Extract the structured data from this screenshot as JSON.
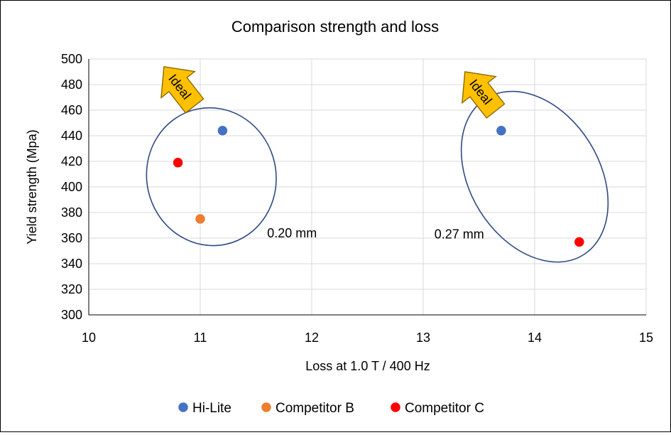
{
  "chart_data": {
    "type": "scatter",
    "title": "Comparison strength and loss",
    "xlabel": "Loss at 1.0 T / 400 Hz",
    "ylabel": "Yield strength (Mpa)",
    "xlim": [
      10,
      15
    ],
    "ylim": [
      300,
      500
    ],
    "x_ticks": [
      10,
      11,
      12,
      13,
      14,
      15
    ],
    "y_ticks": [
      300,
      320,
      340,
      360,
      380,
      400,
      420,
      440,
      460,
      480,
      500
    ],
    "grid": true,
    "legend_position": "bottom",
    "series": [
      {
        "name": "Hi-Lite",
        "color": "#4472C4",
        "points": [
          {
            "x": 11.2,
            "y": 444
          },
          {
            "x": 13.7,
            "y": 444
          }
        ]
      },
      {
        "name": "Competitor B",
        "color": "#ED7D31",
        "points": [
          {
            "x": 11.0,
            "y": 375
          }
        ]
      },
      {
        "name": "Competitor C",
        "color": "#FF0000",
        "points": [
          {
            "x": 10.8,
            "y": 419
          },
          {
            "x": 14.4,
            "y": 357
          }
        ]
      }
    ],
    "annotations": [
      {
        "text": "0.20 mm",
        "x": 11.6,
        "y": 364
      },
      {
        "text": "0.27 mm",
        "x": 13.1,
        "y": 363
      },
      {
        "text": "Ideal",
        "x": 10.8,
        "y": 480
      },
      {
        "text": "Ideal",
        "x": 13.5,
        "y": 476
      }
    ],
    "ellipses": [
      {
        "cx": 11.1,
        "cy": 408,
        "rx": 0.58,
        "ry": 54,
        "rotate": -12
      },
      {
        "cx": 14.0,
        "cy": 408,
        "rx": 0.58,
        "ry": 72,
        "rotate": -32
      }
    ]
  }
}
